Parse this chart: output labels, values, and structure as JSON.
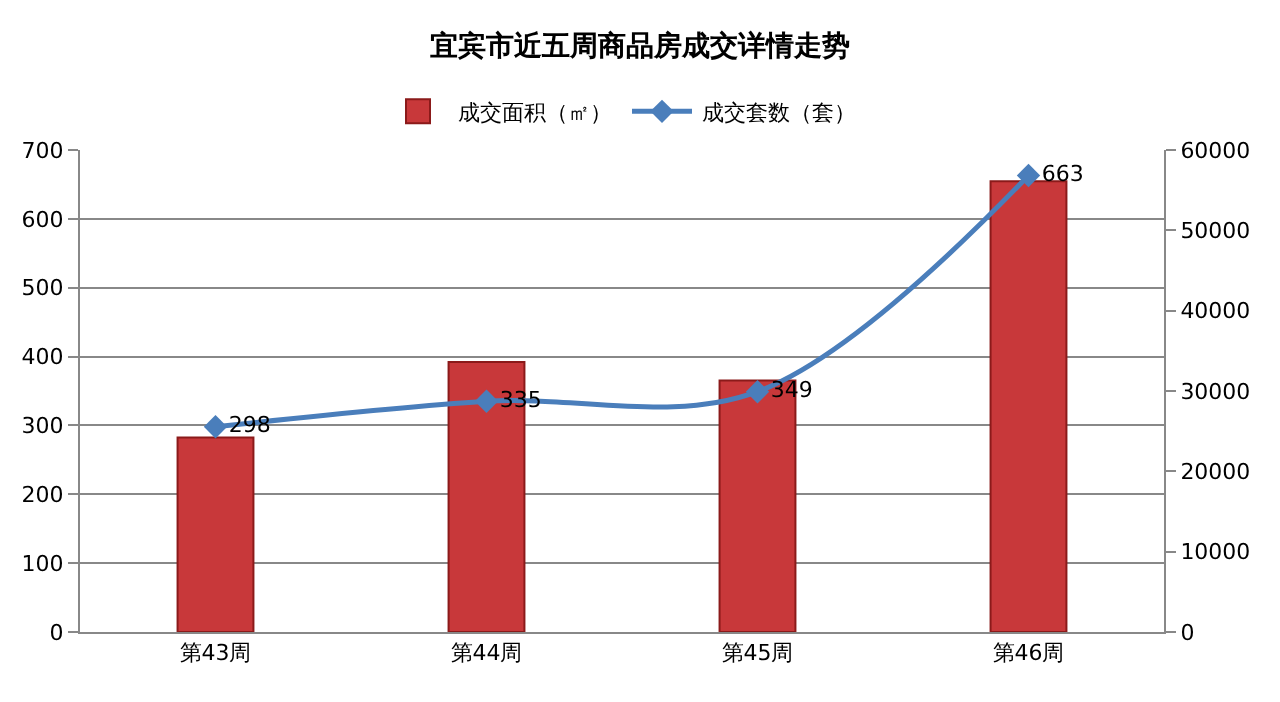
{
  "chart_data": {
    "type": "bar",
    "title": "宜宾市近五周商品房成交详情走势",
    "categories": [
      "第43周",
      "第44周",
      "第45周",
      "第46周"
    ],
    "series": [
      {
        "name": "成交面积（㎡）",
        "axis": "y2",
        "color": "#c8383a",
        "values": [
          24200,
          33600,
          31300,
          56100
        ]
      },
      {
        "name": "成交套数（套）",
        "type": "line",
        "axis": "y",
        "color": "#4a7ebb",
        "values": [
          298,
          335,
          349,
          663
        ],
        "value_labels": [
          "298",
          "335",
          "349",
          "663"
        ]
      }
    ],
    "ylim": [
      0,
      700
    ],
    "yticks": [
      0,
      100,
      200,
      300,
      400,
      500,
      600,
      700
    ],
    "y2lim": [
      0,
      60000
    ],
    "y2ticks": [
      0,
      10000,
      20000,
      30000,
      40000,
      50000,
      60000
    ],
    "grid": "y",
    "legend": "top",
    "marker": "diamond",
    "line_style": "solid"
  }
}
